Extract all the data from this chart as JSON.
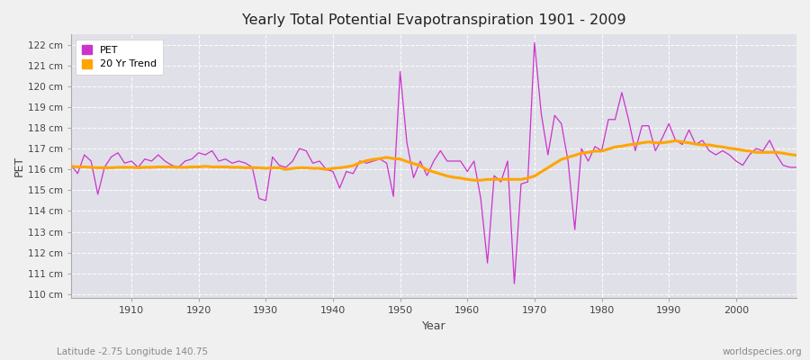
{
  "title": "Yearly Total Potential Evapotranspiration 1901 - 2009",
  "xlabel": "Year",
  "ylabel": "PET",
  "subtitle": "Latitude -2.75 Longitude 140.75",
  "watermark": "worldspecies.org",
  "pet_color": "#cc33cc",
  "trend_color": "#FFA500",
  "plot_bg_color": "#e0e0e8",
  "fig_bg_color": "#f0f0f0",
  "grid_color": "#ffffff",
  "ylim": [
    109.8,
    122.5
  ],
  "yticks": [
    110,
    111,
    112,
    113,
    114,
    115,
    116,
    117,
    118,
    119,
    120,
    121,
    122
  ],
  "ytick_labels": [
    "110 cm",
    "111 cm",
    "112 cm",
    "113 cm",
    "114 cm",
    "115 cm",
    "116 cm",
    "117 cm",
    "118 cm",
    "119 cm",
    "120 cm",
    "121 cm",
    "122 cm"
  ],
  "xlim": [
    1901,
    2009
  ],
  "xticks": [
    1910,
    1920,
    1930,
    1940,
    1950,
    1960,
    1970,
    1980,
    1990,
    2000
  ],
  "years": [
    1901,
    1902,
    1903,
    1904,
    1905,
    1906,
    1907,
    1908,
    1909,
    1910,
    1911,
    1912,
    1913,
    1914,
    1915,
    1916,
    1917,
    1918,
    1919,
    1920,
    1921,
    1922,
    1923,
    1924,
    1925,
    1926,
    1927,
    1928,
    1929,
    1930,
    1931,
    1932,
    1933,
    1934,
    1935,
    1936,
    1937,
    1938,
    1939,
    1940,
    1941,
    1942,
    1943,
    1944,
    1945,
    1946,
    1947,
    1948,
    1949,
    1950,
    1951,
    1952,
    1953,
    1954,
    1955,
    1956,
    1957,
    1958,
    1959,
    1960,
    1961,
    1962,
    1963,
    1964,
    1965,
    1966,
    1967,
    1968,
    1969,
    1970,
    1971,
    1972,
    1973,
    1974,
    1975,
    1976,
    1977,
    1978,
    1979,
    1980,
    1981,
    1982,
    1983,
    1984,
    1985,
    1986,
    1987,
    1988,
    1989,
    1990,
    1991,
    1992,
    1993,
    1994,
    1995,
    1996,
    1997,
    1998,
    1999,
    2000,
    2001,
    2002,
    2003,
    2004,
    2005,
    2006,
    2007,
    2008,
    2009
  ],
  "pet": [
    116.2,
    115.8,
    116.7,
    116.4,
    114.8,
    116.1,
    116.6,
    116.8,
    116.3,
    116.4,
    116.1,
    116.5,
    116.4,
    116.7,
    116.4,
    116.2,
    116.1,
    116.4,
    116.5,
    116.8,
    116.7,
    116.9,
    116.4,
    116.5,
    116.3,
    116.4,
    116.3,
    116.1,
    114.6,
    114.5,
    116.6,
    116.2,
    116.1,
    116.4,
    117.0,
    116.9,
    116.3,
    116.4,
    116.0,
    115.9,
    115.1,
    115.9,
    115.8,
    116.4,
    116.3,
    116.4,
    116.5,
    116.3,
    114.7,
    120.7,
    117.3,
    115.6,
    116.4,
    115.7,
    116.4,
    116.9,
    116.4,
    116.4,
    116.4,
    115.9,
    116.4,
    114.6,
    111.5,
    115.7,
    115.4,
    116.4,
    110.5,
    115.3,
    115.4,
    122.1,
    118.7,
    116.7,
    118.6,
    118.2,
    116.4,
    113.1,
    117.0,
    116.4,
    117.1,
    116.9,
    118.4,
    118.4,
    119.7,
    118.4,
    116.9,
    118.1,
    118.1,
    116.9,
    117.5,
    118.2,
    117.4,
    117.2,
    117.9,
    117.2,
    117.4,
    116.9,
    116.7,
    116.9,
    116.7,
    116.4,
    116.2,
    116.7,
    117.0,
    116.9,
    117.4,
    116.7,
    116.2,
    116.1,
    116.1
  ],
  "trend": [
    116.15,
    116.12,
    116.12,
    116.1,
    116.08,
    116.08,
    116.08,
    116.1,
    116.1,
    116.1,
    116.08,
    116.1,
    116.1,
    116.12,
    116.12,
    116.12,
    116.1,
    116.1,
    116.12,
    116.12,
    116.15,
    116.12,
    116.12,
    116.12,
    116.1,
    116.1,
    116.08,
    116.08,
    116.08,
    116.05,
    116.08,
    116.08,
    116.0,
    116.05,
    116.08,
    116.08,
    116.05,
    116.05,
    116.0,
    116.05,
    116.08,
    116.12,
    116.18,
    116.32,
    116.42,
    116.48,
    116.52,
    116.58,
    116.52,
    116.5,
    116.38,
    116.28,
    116.18,
    115.98,
    115.88,
    115.78,
    115.68,
    115.62,
    115.58,
    115.52,
    115.48,
    115.48,
    115.52,
    115.52,
    115.52,
    115.52,
    115.52,
    115.52,
    115.58,
    115.68,
    115.88,
    116.08,
    116.28,
    116.48,
    116.58,
    116.68,
    116.78,
    116.82,
    116.88,
    116.88,
    116.98,
    117.08,
    117.12,
    117.18,
    117.22,
    117.28,
    117.32,
    117.28,
    117.28,
    117.32,
    117.38,
    117.32,
    117.28,
    117.22,
    117.18,
    117.18,
    117.12,
    117.08,
    117.02,
    116.98,
    116.92,
    116.88,
    116.82,
    116.82,
    116.82,
    116.82,
    116.78,
    116.72,
    116.68
  ]
}
